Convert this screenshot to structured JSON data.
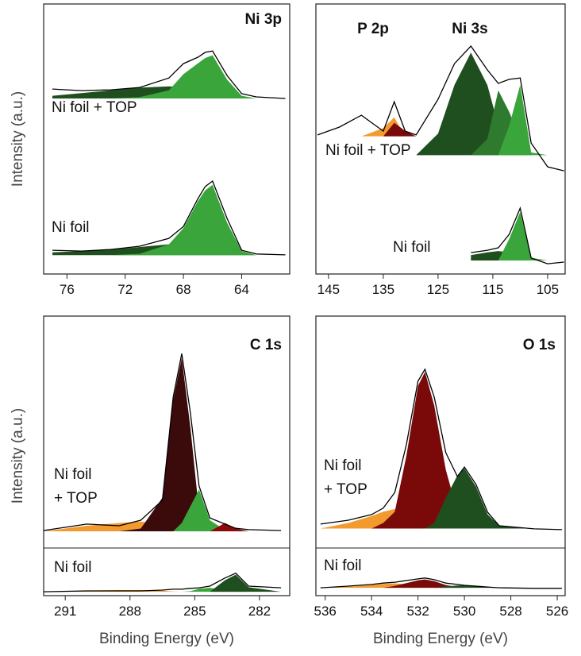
{
  "chart_data": [
    {
      "type": "area",
      "title": "Ni 3p",
      "annotations": [
        "Ni foil + TOP",
        "Ni foil"
      ],
      "ylabel": "Intensity (a.u.)",
      "x": [
        77,
        75,
        73,
        71,
        69,
        68,
        67,
        66.5,
        66,
        65,
        64,
        63,
        61
      ],
      "xlim": [
        77.6,
        60.7
      ],
      "xticks": [
        76,
        72,
        68,
        64
      ],
      "ylim": [
        0,
        100
      ],
      "series": [
        {
          "color": "#1f4f1f",
          "base": 65,
          "values": [
            66,
            67,
            68,
            69,
            69.5,
            69,
            68,
            67.5,
            67,
            66,
            65.5,
            65,
            65
          ]
        },
        {
          "color": "#3aa53a",
          "base": 65,
          "values": [
            65,
            65,
            65,
            65.5,
            68,
            74,
            78,
            80,
            81,
            72,
            66,
            65,
            65
          ]
        },
        {
          "color": "#000000",
          "values": [
            68.5,
            67.9,
            68.2,
            69.1,
            72.6,
            77.9,
            80.3,
            82.1,
            82.6,
            73.5,
            66.8,
            65.6,
            65.0
          ]
        },
        {
          "color": "#1f4f1f",
          "base": 7,
          "values": [
            8,
            8.5,
            9,
            10,
            11,
            11,
            10,
            9.5,
            9,
            8,
            7.5,
            7,
            7
          ]
        },
        {
          "color": "#3aa53a",
          "base": 7,
          "values": [
            7,
            7,
            7,
            7.5,
            11,
            17,
            27,
            31,
            33,
            19,
            8.5,
            7,
            7
          ]
        },
        {
          "color": "#000000",
          "values": [
            8.8,
            8.5,
            9.1,
            10.3,
            13.2,
            17.6,
            27.9,
            32.4,
            34.4,
            20.6,
            8.8,
            7.4,
            7.1
          ]
        }
      ]
    },
    {
      "type": "area",
      "annotations": [
        "P 2p",
        "Ni 3s",
        "Ni foil + TOP",
        "Ni foil"
      ],
      "x": [
        147,
        143,
        139,
        135,
        133,
        131,
        129,
        125,
        122,
        119,
        116,
        114,
        112,
        110,
        108,
        105,
        102
      ],
      "xlim": [
        147.3,
        101.8
      ],
      "xticks": [
        145,
        135,
        125,
        115,
        105
      ],
      "ylim": [
        0,
        100
      ],
      "series": [
        {
          "color": "#f39a2e",
          "base": 51,
          "values": [
            51,
            51,
            51,
            54,
            58,
            51,
            51,
            51,
            51,
            51,
            51,
            51,
            51,
            51,
            51,
            51,
            51
          ]
        },
        {
          "color": "#7a0a0a",
          "base": 51,
          "values": [
            51,
            51,
            51,
            51,
            56,
            53,
            51,
            51,
            51,
            51,
            51,
            51,
            51,
            51,
            51,
            51,
            51
          ]
        },
        {
          "color": "#1f4f1f",
          "base": 44,
          "values": [
            44,
            44,
            44,
            44,
            44,
            44,
            44,
            52,
            70,
            82,
            70,
            55,
            47,
            45,
            44,
            44,
            44
          ]
        },
        {
          "color": "#2e7a2e",
          "base": 44,
          "values": [
            44,
            44,
            44,
            44,
            44,
            44,
            44,
            44,
            44,
            44,
            50,
            68,
            60,
            50,
            44,
            44,
            44
          ]
        },
        {
          "color": "#3aa53a",
          "base": 44,
          "values": [
            44,
            44,
            44,
            44,
            44,
            44,
            44,
            44,
            44,
            44,
            44,
            44,
            55,
            70,
            45,
            44,
            44
          ]
        },
        {
          "color": "#000000",
          "values": [
            51.5,
            54.4,
            58.8,
            52.9,
            63.8,
            52.9,
            51.5,
            64.7,
            77.9,
            84.4,
            75.6,
            70.6,
            72.1,
            72.6,
            48.5,
            39.7,
            38.2
          ]
        },
        {
          "color": "#1f4f1f",
          "base": 5,
          "values": [
            null,
            null,
            null,
            null,
            null,
            null,
            null,
            null,
            null,
            7,
            8,
            8.5,
            8,
            7,
            5,
            5,
            5
          ]
        },
        {
          "color": "#3aa53a",
          "base": 5,
          "values": [
            null,
            null,
            null,
            null,
            null,
            null,
            null,
            null,
            null,
            5,
            5,
            5,
            13,
            23,
            6,
            5,
            5
          ]
        },
        {
          "color": "#000000",
          "values": [
            null,
            null,
            null,
            null,
            null,
            null,
            null,
            null,
            null,
            7.9,
            8.8,
            9.7,
            14.7,
            24.4,
            5.9,
            3.8,
            4.4
          ]
        }
      ]
    },
    {
      "type": "area",
      "title": "C 1s",
      "annotations": [
        "Ni foil",
        "+ TOP",
        "Ni foil"
      ],
      "ylabel": "Intensity (a.u.)",
      "xlabel": "Binding Energy (eV)",
      "x": [
        292,
        290,
        288.5,
        287.5,
        286.5,
        286,
        285.6,
        285.2,
        284.8,
        284.3,
        283.6,
        283.1,
        282.5,
        281
      ],
      "xlim": [
        292,
        280.6
      ],
      "xticks": [
        291,
        288,
        285,
        282
      ],
      "ylim": [
        0,
        100
      ],
      "series": [
        {
          "color": "#f39a2e",
          "base": 23,
          "values": [
            23,
            25,
            26,
            26.5,
            25.5,
            24,
            23,
            23,
            23,
            23,
            23,
            23,
            23,
            23
          ]
        },
        {
          "color": "#3b0a0a",
          "base": 23,
          "values": [
            23,
            23,
            23,
            24,
            35,
            70,
            85,
            60,
            30,
            23.5,
            23,
            23,
            23,
            23
          ]
        },
        {
          "color": "#3aa53a",
          "base": 23,
          "values": [
            23,
            23,
            23,
            23,
            23,
            23,
            26,
            32,
            38,
            27,
            23.5,
            23,
            23,
            23
          ]
        },
        {
          "color": "#8b0a0a",
          "base": 23,
          "values": [
            23,
            23,
            23,
            23,
            23,
            23,
            23,
            23,
            23,
            23,
            26,
            24,
            23,
            23
          ]
        },
        {
          "color": "#000000",
          "values": [
            23.3,
            25.6,
            25.0,
            27.0,
            34.1,
            71.0,
            86.6,
            65.3,
            39.2,
            27.8,
            25.6,
            24.1,
            23.6,
            23.3
          ]
        },
        {
          "color": "#f39a2e",
          "base": 1.4,
          "values": [
            1.4,
            1.8,
            2,
            2,
            1.8,
            1.5,
            1.4,
            1.4,
            1.4,
            1.4,
            1.4,
            1.4,
            1.4,
            1.4
          ]
        },
        {
          "color": "#3aa53a",
          "base": 1.4,
          "values": [
            1.4,
            1.4,
            1.4,
            1.4,
            1.4,
            1.4,
            1.4,
            1.6,
            2.5,
            2.8,
            2,
            1.6,
            1.4,
            1.4
          ]
        },
        {
          "color": "#1f4f1f",
          "base": 1.4,
          "values": [
            1.4,
            1.4,
            1.4,
            1.4,
            1.4,
            1.4,
            1.4,
            1.4,
            1.4,
            1.4,
            5.5,
            7.5,
            3,
            1.4
          ]
        },
        {
          "color": "#000000",
          "values": [
            1.4,
            1.7,
            1.7,
            1.7,
            2.0,
            2.3,
            2.3,
            2.6,
            2.8,
            3.4,
            6.3,
            8.0,
            3.4,
            2.8
          ]
        }
      ]
    },
    {
      "type": "area",
      "title": "O 1s",
      "annotations": [
        "Ni foil",
        "+ TOP",
        "Ni foil"
      ],
      "xlabel": "Binding Energy (eV)",
      "x": [
        536.2,
        535,
        534,
        533.5,
        533,
        532.5,
        532,
        531.7,
        531.3,
        530.8,
        530.3,
        530,
        529.5,
        529,
        528.5,
        527,
        525.8
      ],
      "xlim": [
        536.4,
        525.66
      ],
      "xticks": [
        536,
        534,
        532,
        530,
        528,
        526
      ],
      "ylim": [
        0,
        100
      ],
      "series": [
        {
          "color": "#f39a2e",
          "base": 24,
          "values": [
            24,
            26,
            28.5,
            30,
            31,
            30,
            28,
            27,
            25.5,
            24.5,
            24,
            24,
            24,
            24,
            24,
            24,
            24
          ]
        },
        {
          "color": "#7a0a0a",
          "base": 24,
          "values": [
            24,
            24,
            24,
            26,
            30,
            50,
            75,
            80,
            68,
            45,
            30,
            26,
            24.5,
            24,
            24,
            24,
            24
          ]
        },
        {
          "color": "#1f4f1f",
          "base": 24,
          "values": [
            24,
            24,
            24,
            24,
            24,
            24,
            24,
            24,
            26,
            35,
            43,
            45.5,
            39,
            29,
            25,
            24,
            24
          ]
        },
        {
          "color": "#000000",
          "values": [
            25.6,
            27.0,
            29.0,
            31.3,
            36.9,
            54.0,
            76.7,
            81.0,
            71.0,
            51.1,
            42.6,
            46.0,
            39.8,
            29.8,
            25.0,
            23.9,
            23.6
          ]
        },
        {
          "color": "#f39a2e",
          "base": 2.8,
          "values": [
            2.8,
            3.2,
            3.8,
            4.2,
            4.4,
            4,
            3.6,
            3.3,
            3,
            2.8,
            2.8,
            2.8,
            2.8,
            2.8,
            2.8,
            2.8,
            2.8
          ]
        },
        {
          "color": "#7a0a0a",
          "base": 2.8,
          "values": [
            2.8,
            2.8,
            2.8,
            2.8,
            3.5,
            4.5,
            5.5,
            5.8,
            5.2,
            3.8,
            3.0,
            2.8,
            2.8,
            2.8,
            2.8,
            2.8,
            2.8
          ]
        },
        {
          "color": "#1f4f1f",
          "base": 2.8,
          "values": [
            2.8,
            2.8,
            2.8,
            2.8,
            2.8,
            2.8,
            2.8,
            2.8,
            2.8,
            3.3,
            3.6,
            3.7,
            3.4,
            3.0,
            2.8,
            2.8,
            2.8
          ]
        },
        {
          "color": "#000000",
          "values": [
            2.8,
            3.4,
            4.0,
            4.5,
            4.8,
            5.4,
            6.0,
            6.3,
            5.7,
            4.5,
            4.0,
            3.7,
            3.4,
            3.1,
            2.8,
            2.6,
            2.6
          ]
        }
      ]
    }
  ]
}
